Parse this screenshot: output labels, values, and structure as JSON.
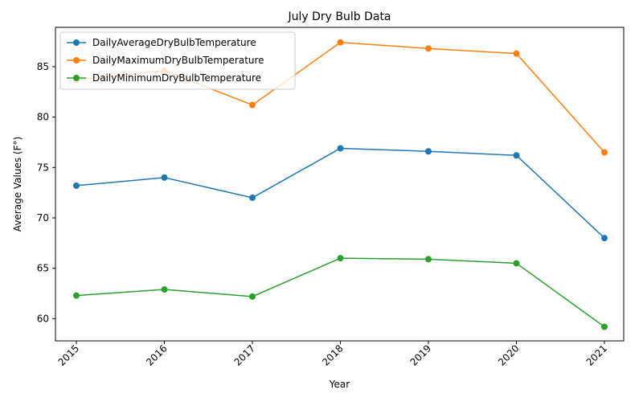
{
  "chart_data": {
    "type": "line",
    "title": "July Dry Bulb Data",
    "xlabel": "Year",
    "ylabel": "Average Values (F°)",
    "x": [
      "2015",
      "2016",
      "2017",
      "2018",
      "2019",
      "2020",
      "2021"
    ],
    "ylim": [
      57.8,
      88.9
    ],
    "yticks": [
      60,
      65,
      70,
      75,
      80,
      85
    ],
    "grid": false,
    "legend_position": "upper-left",
    "series": [
      {
        "name": "DailyAverageDryBulbTemperature",
        "color": "#1f77b4",
        "values": [
          73.2,
          74.0,
          72.0,
          76.9,
          76.6,
          76.2,
          68.0
        ]
      },
      {
        "name": "DailyMaximumDryBulbTemperature",
        "color": "#ff7f0e",
        "values": [
          83.7,
          84.6,
          81.2,
          87.4,
          86.8,
          86.3,
          76.5
        ]
      },
      {
        "name": "DailyMinimumDryBulbTemperature",
        "color": "#2ca02c",
        "values": [
          62.3,
          62.9,
          62.2,
          66.0,
          65.9,
          65.5,
          59.2
        ]
      }
    ]
  }
}
